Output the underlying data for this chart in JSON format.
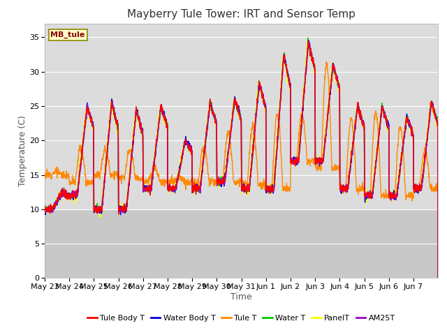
{
  "title": "Mayberry Tule Tower: IRT and Sensor Temp",
  "xlabel": "Time",
  "ylabel": "Temperature (C)",
  "ylim": [
    0,
    37
  ],
  "yticks": [
    0,
    5,
    10,
    15,
    20,
    25,
    30,
    35
  ],
  "date_labels": [
    "May 23",
    "May 24",
    "May 25",
    "May 26",
    "May 27",
    "May 28",
    "May 29",
    "May 30",
    "May 31",
    "Jun 1",
    "Jun 2",
    "Jun 3",
    "Jun 4",
    "Jun 5",
    "Jun 6",
    "Jun 7"
  ],
  "legend_entries": [
    {
      "label": "Tule Body T",
      "color": "#ff0000"
    },
    {
      "label": "Water Body T",
      "color": "#0000dd"
    },
    {
      "label": "Tule T",
      "color": "#ff8800"
    },
    {
      "label": "Water T",
      "color": "#00cc00"
    },
    {
      "label": "PanelT",
      "color": "#ffff00"
    },
    {
      "label": "AM25T",
      "color": "#9900cc"
    }
  ],
  "site_label": "MB_tule",
  "plot_bg_color": "#e8e8e8",
  "plot_bg_upper": "#dcdcdc",
  "fig_bg_color": "#ffffff",
  "grid_color": "#ffffff",
  "title_fontsize": 11,
  "axis_fontsize": 9,
  "tick_fontsize": 8,
  "n_days": 16,
  "n_per_day": 96,
  "day_peaks": [
    12.5,
    25,
    25.5,
    24.5,
    25,
    20,
    25.5,
    26,
    28.5,
    32.5,
    34.5,
    31,
    25,
    25,
    23.5,
    25.5
  ],
  "day_mins": [
    10,
    12,
    10,
    10,
    13,
    13,
    13,
    14,
    13,
    13,
    17,
    17,
    13,
    12,
    12,
    13
  ],
  "orange_peaks": [
    15.5,
    19,
    18.5,
    18.5,
    16,
    14.5,
    19,
    21,
    22,
    24,
    23.5,
    31,
    23,
    24,
    22,
    18.5
  ],
  "orange_mins": [
    15,
    14,
    15,
    14.5,
    14,
    14,
    14,
    14,
    13.5,
    13,
    17,
    16,
    13,
    12,
    12,
    13
  ]
}
